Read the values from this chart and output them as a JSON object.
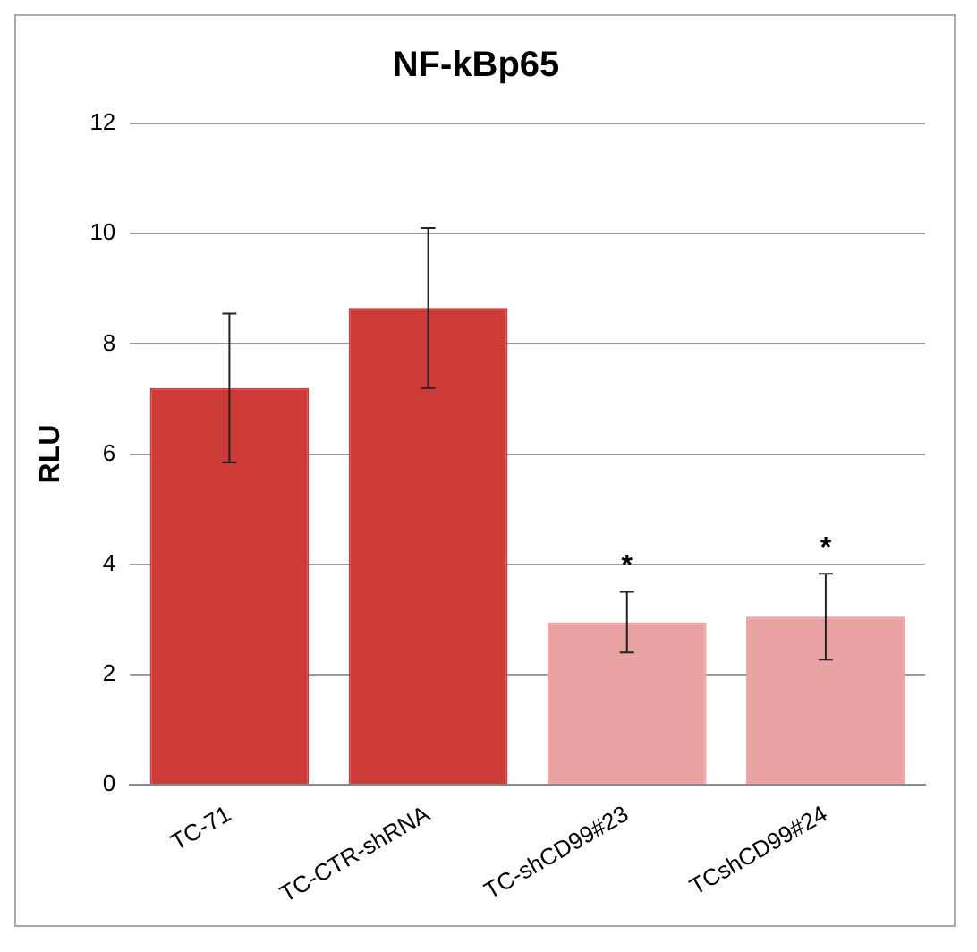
{
  "chart_data": {
    "type": "bar",
    "title": "NF-kBp65",
    "ylabel": "RLU",
    "categories": [
      "TC-71",
      "TC-CTR-shRNA",
      "TC-shCD99#23",
      "TCshCD99#24"
    ],
    "values": [
      7.2,
      8.65,
      2.95,
      3.05
    ],
    "colors": [
      "#cc3b38",
      "#cc3b38",
      "#eaa3a3",
      "#eaa3a3"
    ],
    "errors": [
      1.35,
      1.45,
      0.55,
      0.78
    ],
    "ylim": [
      0,
      12
    ],
    "yticks": [
      0,
      2,
      4,
      6,
      8,
      10,
      12
    ],
    "grid": "y",
    "legend": false,
    "annotations": [
      "*",
      "*"
    ]
  }
}
